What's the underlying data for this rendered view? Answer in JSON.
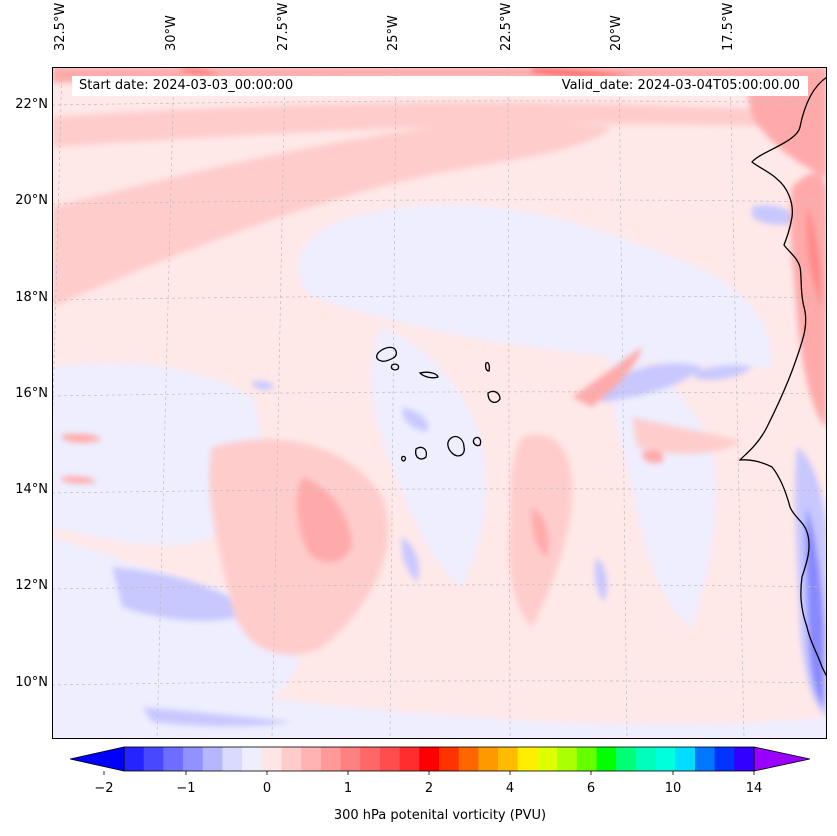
{
  "map": {
    "start_date_label": "Start date: 2024-03-03_00:00:00",
    "valid_date_label": "Valid_date: 2024-03-04T05:00:00.00",
    "longitude_labels": [
      "32.5°W",
      "30°W",
      "27.5°W",
      "25°W",
      "22.5°W",
      "20°W",
      "17.5°W"
    ],
    "latitude_labels": [
      "22°N",
      "20°N",
      "18°N",
      "16°N",
      "14°N",
      "12°N",
      "10°N"
    ]
  },
  "colorbar": {
    "label": "300 hPa potenital vorticity (PVU)",
    "ticks": [
      "−2",
      "−1",
      "0",
      "1",
      "2",
      "4",
      "6",
      "10",
      "14"
    ],
    "colors": [
      "#0000ff",
      "#2424ff",
      "#4848ff",
      "#6d6dff",
      "#9191ff",
      "#b6b6ff",
      "#dadaff",
      "#eeeeff",
      "#ffe6e6",
      "#ffcccc",
      "#ffb3b3",
      "#ff9999",
      "#ff8080",
      "#ff6666",
      "#ff4d4d",
      "#ff2d2d",
      "#ff0000",
      "#ff3300",
      "#ff6600",
      "#ff9900",
      "#ffbb00",
      "#ffee00",
      "#ddff00",
      "#aaff00",
      "#66ff00",
      "#00ff00",
      "#00ff77",
      "#00ffbb",
      "#00ffdd",
      "#00ddff",
      "#0077ff",
      "#0033ff",
      "#3300ff",
      "#9900ff"
    ]
  },
  "palette": {
    "neg_weak": "#eeeeff",
    "neg_med": "#c8c8ff",
    "neg_strong": "#8888ff",
    "pos_weak": "#ffe6e6",
    "pos_med": "#ffcccc",
    "pos_strong": "#ffaaaa",
    "pos_hot": "#ff6a6a",
    "coast": "#000000",
    "grid": "#b0b0b0"
  }
}
